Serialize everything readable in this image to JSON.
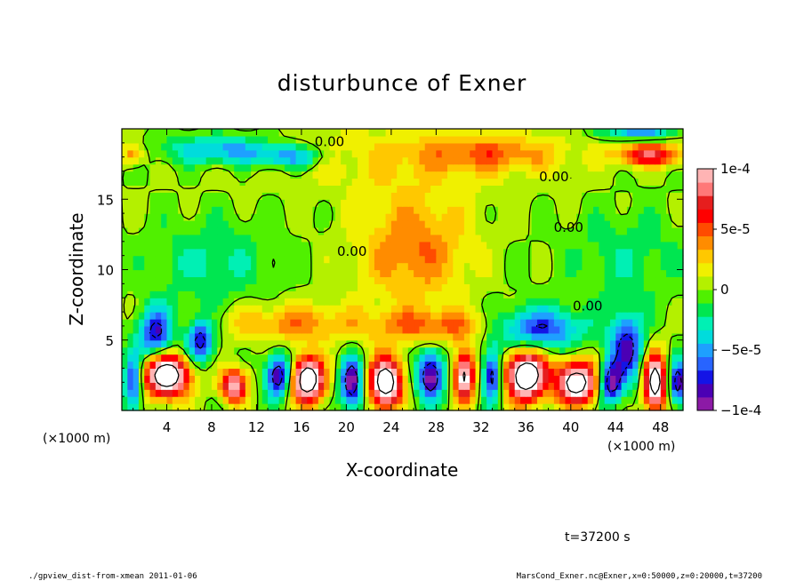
{
  "chart_data": {
    "type": "heatmap",
    "title": "disturbunce of Exner",
    "xlabel": "X-coordinate",
    "ylabel": "Z-coordinate",
    "x_unit_left": "(×1000 m)",
    "x_unit_right": "(×1000 m)",
    "xlim": [
      0,
      50
    ],
    "ylim": [
      0,
      20
    ],
    "x_ticks": [
      {
        "value": 4,
        "label": "4"
      },
      {
        "value": 8,
        "label": "8"
      },
      {
        "value": 12,
        "label": "12"
      },
      {
        "value": 16,
        "label": "16"
      },
      {
        "value": 20,
        "label": "20"
      },
      {
        "value": 24,
        "label": "24"
      },
      {
        "value": 28,
        "label": "28"
      },
      {
        "value": 32,
        "label": "32"
      },
      {
        "value": 36,
        "label": "36"
      },
      {
        "value": 40,
        "label": "40"
      },
      {
        "value": 44,
        "label": "44"
      },
      {
        "value": 48,
        "label": "48"
      }
    ],
    "y_ticks": [
      {
        "value": 5,
        "label": "5"
      },
      {
        "value": 10,
        "label": "10"
      },
      {
        "value": 15,
        "label": "15"
      }
    ],
    "colorbar": {
      "min": -0.0001,
      "max": 0.0001,
      "ticks": [
        {
          "value": 0.0001,
          "label": "1e-4"
        },
        {
          "value": 5e-05,
          "label": "5e-5"
        },
        {
          "value": 0,
          "label": "0"
        },
        {
          "value": -5e-05,
          "label": "−5e-5"
        },
        {
          "value": -0.0001,
          "label": "−1e-4"
        }
      ],
      "colors": [
        "#8c1aa6",
        "#4b00b4",
        "#1414e6",
        "#2864ff",
        "#1ea0ff",
        "#00dcdc",
        "#00f0b4",
        "#00e650",
        "#50f000",
        "#b4f000",
        "#f0f000",
        "#ffc800",
        "#ff8c00",
        "#ff4b00",
        "#ff0000",
        "#e61e1e",
        "#ff7878",
        "#ffb4b4"
      ]
    },
    "contour_labels": [
      {
        "x": 18.5,
        "z": 19.1,
        "text": "0.00"
      },
      {
        "x": 38.5,
        "z": 16.6,
        "text": "0.00"
      },
      {
        "x": 39.8,
        "z": 13.0,
        "text": "0.00"
      },
      {
        "x": 20.5,
        "z": 11.3,
        "text": "0.00"
      },
      {
        "x": 41.5,
        "z": 7.4,
        "text": "0.00"
      }
    ],
    "field_features": [
      {
        "x": 25,
        "z": 18,
        "sx": 14,
        "sz": 2.5,
        "amp": 0.2
      },
      {
        "x": 9,
        "z": 18.5,
        "sx": 5,
        "sz": 1.0,
        "amp": -0.55
      },
      {
        "x": 15,
        "z": 18.0,
        "sx": 3,
        "sz": 0.8,
        "amp": -0.5
      },
      {
        "x": 33,
        "z": 18.3,
        "sx": 6,
        "sz": 1.2,
        "amp": 0.35
      },
      {
        "x": 47,
        "z": 18.2,
        "sx": 3,
        "sz": 0.8,
        "amp": 0.75
      },
      {
        "x": 1,
        "z": 18.2,
        "sx": 1,
        "sz": 0.7,
        "amp": 0.45
      },
      {
        "x": 46,
        "z": 19.8,
        "sx": 3,
        "sz": 0.6,
        "amp": -0.55
      },
      {
        "x": 26,
        "z": 11.5,
        "sx": 5,
        "sz": 4,
        "amp": 0.45
      },
      {
        "x": 8,
        "z": 10.5,
        "sx": 5,
        "sz": 3,
        "amp": -0.25
      },
      {
        "x": 45,
        "z": 11,
        "sx": 5,
        "sz": 3,
        "amp": -0.2
      },
      {
        "x": 3,
        "z": 5.5,
        "sx": 1.5,
        "sz": 1.8,
        "amp": -0.8
      },
      {
        "x": 7,
        "z": 5.0,
        "sx": 1.2,
        "sz": 1.5,
        "amp": -0.85
      },
      {
        "x": 37,
        "z": 5.8,
        "sx": 4,
        "sz": 1.5,
        "amp": -0.75
      },
      {
        "x": 45,
        "z": 4.5,
        "sx": 1.5,
        "sz": 2.5,
        "amp": -0.8
      },
      {
        "x": 28,
        "z": 6.0,
        "sx": 6,
        "sz": 1.2,
        "amp": 0.45
      },
      {
        "x": 15,
        "z": 6.2,
        "sx": 6,
        "sz": 1.4,
        "amp": 0.4
      },
      {
        "x": 4,
        "z": 2.5,
        "sx": 2,
        "sz": 1.5,
        "amp": 1.5
      },
      {
        "x": 14,
        "z": 2.5,
        "sx": 1.2,
        "sz": 1.5,
        "amp": -1.0
      },
      {
        "x": 16.5,
        "z": 2.2,
        "sx": 1.5,
        "sz": 1.6,
        "amp": 1.5
      },
      {
        "x": 20.5,
        "z": 2.0,
        "sx": 1.0,
        "sz": 1.8,
        "amp": -1.0
      },
      {
        "x": 23.5,
        "z": 2.0,
        "sx": 1.5,
        "sz": 1.8,
        "amp": 1.4
      },
      {
        "x": 27.5,
        "z": 2.5,
        "sx": 1.2,
        "sz": 1.8,
        "amp": -1.0
      },
      {
        "x": 30.5,
        "z": 2.5,
        "sx": 0.9,
        "sz": 1.8,
        "amp": 1.2
      },
      {
        "x": 33,
        "z": 2.5,
        "sx": 0.8,
        "sz": 1.8,
        "amp": -0.9
      },
      {
        "x": 36,
        "z": 2.5,
        "sx": 1.8,
        "sz": 1.8,
        "amp": 1.5
      },
      {
        "x": 40.5,
        "z": 2.0,
        "sx": 1.8,
        "sz": 1.5,
        "amp": 1.4
      },
      {
        "x": 43.5,
        "z": 2.0,
        "sx": 1.0,
        "sz": 1.5,
        "amp": -0.9
      },
      {
        "x": 47.5,
        "z": 2.0,
        "sx": 1.0,
        "sz": 2.0,
        "amp": 1.4
      },
      {
        "x": 49.5,
        "z": 2.0,
        "sx": 0.8,
        "sz": 1.5,
        "amp": -0.9
      },
      {
        "x": 10,
        "z": 1.8,
        "sx": 1.2,
        "sz": 1.2,
        "amp": 1.0
      },
      {
        "x": 1.0,
        "z": 2.0,
        "sx": 0.8,
        "sz": 2.0,
        "amp": -0.8
      }
    ]
  },
  "time_label": "t=37200 s",
  "footer_left": "./gpview_dist-from-xmean  2011-01-06",
  "footer_right": "MarsCond_Exner.nc@Exner,x=0:50000,z=0:20000,t=37200"
}
